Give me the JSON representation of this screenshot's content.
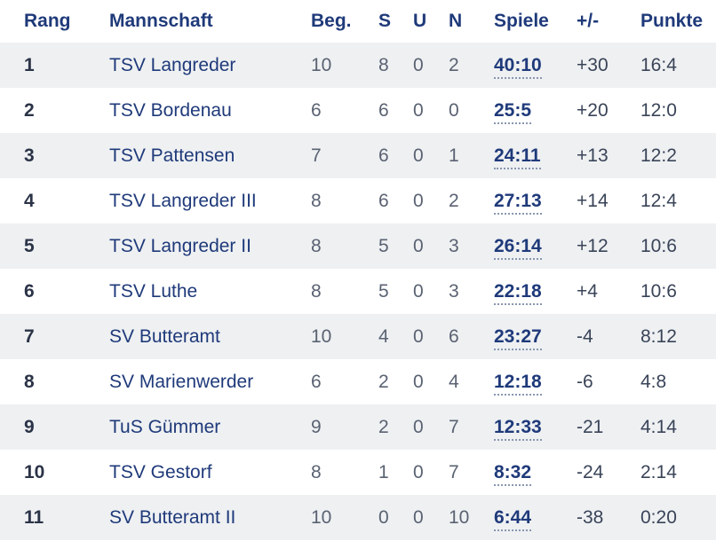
{
  "header": {
    "rang": "Rang",
    "mannschaft": "Mannschaft",
    "beg": "Beg.",
    "s": "S",
    "u": "U",
    "n": "N",
    "spiele": "Spiele",
    "diff": "+/-",
    "punkte": "Punkte"
  },
  "rows": [
    {
      "rang": "1",
      "team": "TSV Langreder",
      "beg": "10",
      "s": "8",
      "u": "0",
      "n": "2",
      "spiele": "40:10",
      "diff": "+30",
      "punkte": "16:4"
    },
    {
      "rang": "2",
      "team": "TSV Bordenau",
      "beg": "6",
      "s": "6",
      "u": "0",
      "n": "0",
      "spiele": "25:5",
      "diff": "+20",
      "punkte": "12:0"
    },
    {
      "rang": "3",
      "team": "TSV Pattensen",
      "beg": "7",
      "s": "6",
      "u": "0",
      "n": "1",
      "spiele": "24:11",
      "diff": "+13",
      "punkte": "12:2"
    },
    {
      "rang": "4",
      "team": "TSV Langreder III",
      "beg": "8",
      "s": "6",
      "u": "0",
      "n": "2",
      "spiele": "27:13",
      "diff": "+14",
      "punkte": "12:4"
    },
    {
      "rang": "5",
      "team": "TSV Langreder II",
      "beg": "8",
      "s": "5",
      "u": "0",
      "n": "3",
      "spiele": "26:14",
      "diff": "+12",
      "punkte": "10:6"
    },
    {
      "rang": "6",
      "team": "TSV Luthe",
      "beg": "8",
      "s": "5",
      "u": "0",
      "n": "3",
      "spiele": "22:18",
      "diff": "+4",
      "punkte": "10:6"
    },
    {
      "rang": "7",
      "team": "SV Butteramt",
      "beg": "10",
      "s": "4",
      "u": "0",
      "n": "6",
      "spiele": "23:27",
      "diff": "-4",
      "punkte": "8:12"
    },
    {
      "rang": "8",
      "team": "SV Marienwerder",
      "beg": "6",
      "s": "2",
      "u": "0",
      "n": "4",
      "spiele": "12:18",
      "diff": "-6",
      "punkte": "4:8"
    },
    {
      "rang": "9",
      "team": "TuS Gümmer",
      "beg": "9",
      "s": "2",
      "u": "0",
      "n": "7",
      "spiele": "12:33",
      "diff": "-21",
      "punkte": "4:14"
    },
    {
      "rang": "10",
      "team": "TSV Gestorf",
      "beg": "8",
      "s": "1",
      "u": "0",
      "n": "7",
      "spiele": "8:32",
      "diff": "-24",
      "punkte": "2:14"
    },
    {
      "rang": "11",
      "team": "SV Butteramt II",
      "beg": "10",
      "s": "0",
      "u": "0",
      "n": "10",
      "spiele": "6:44",
      "diff": "-38",
      "punkte": "0:20"
    }
  ]
}
